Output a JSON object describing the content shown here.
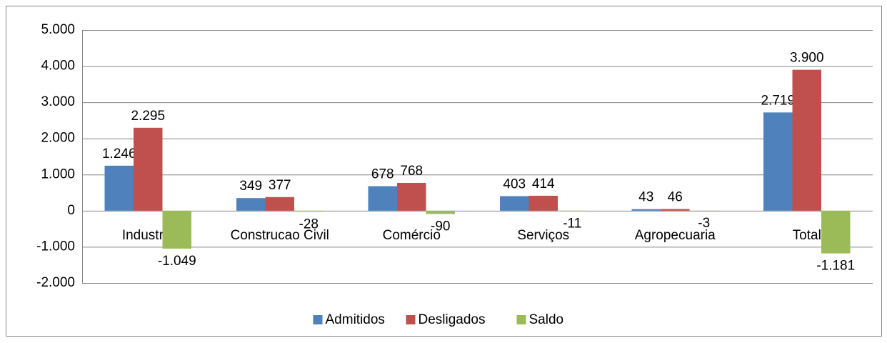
{
  "chart_data": {
    "type": "bar",
    "categories": [
      "Industria",
      "Construcao Civil",
      "Comércio",
      "Serviços",
      "Agropecuaria",
      "Total"
    ],
    "series": [
      {
        "name": "Admitidos",
        "color": "#4f81bd",
        "values": [
          1246,
          349,
          678,
          403,
          43,
          2719
        ],
        "value_labels": [
          "1.246",
          "349",
          "678",
          "403",
          "43",
          "2.719"
        ]
      },
      {
        "name": "Desligados",
        "color": "#c0504d",
        "values": [
          2295,
          377,
          768,
          414,
          46,
          3900
        ],
        "value_labels": [
          "2.295",
          "377",
          "768",
          "414",
          "46",
          "3.900"
        ]
      },
      {
        "name": "Saldo",
        "color": "#9bbb59",
        "values": [
          -1049,
          -28,
          -90,
          -11,
          -3,
          -1181
        ],
        "value_labels": [
          "-1.049",
          "-28",
          "-90",
          "-11",
          "-3",
          "-1.181"
        ]
      }
    ],
    "ylim": [
      -2000,
      5000
    ],
    "yticks": [
      {
        "value": -2000,
        "label": "-2.000"
      },
      {
        "value": -1000,
        "label": "-1.000"
      },
      0,
      {
        "value": 1000,
        "label": "1.000"
      },
      {
        "value": 2000,
        "label": "2.000"
      },
      {
        "value": 3000,
        "label": "3.000"
      },
      {
        "value": 4000,
        "label": "4.000"
      },
      {
        "value": 5000,
        "label": "5.000"
      }
    ],
    "grid": true
  }
}
